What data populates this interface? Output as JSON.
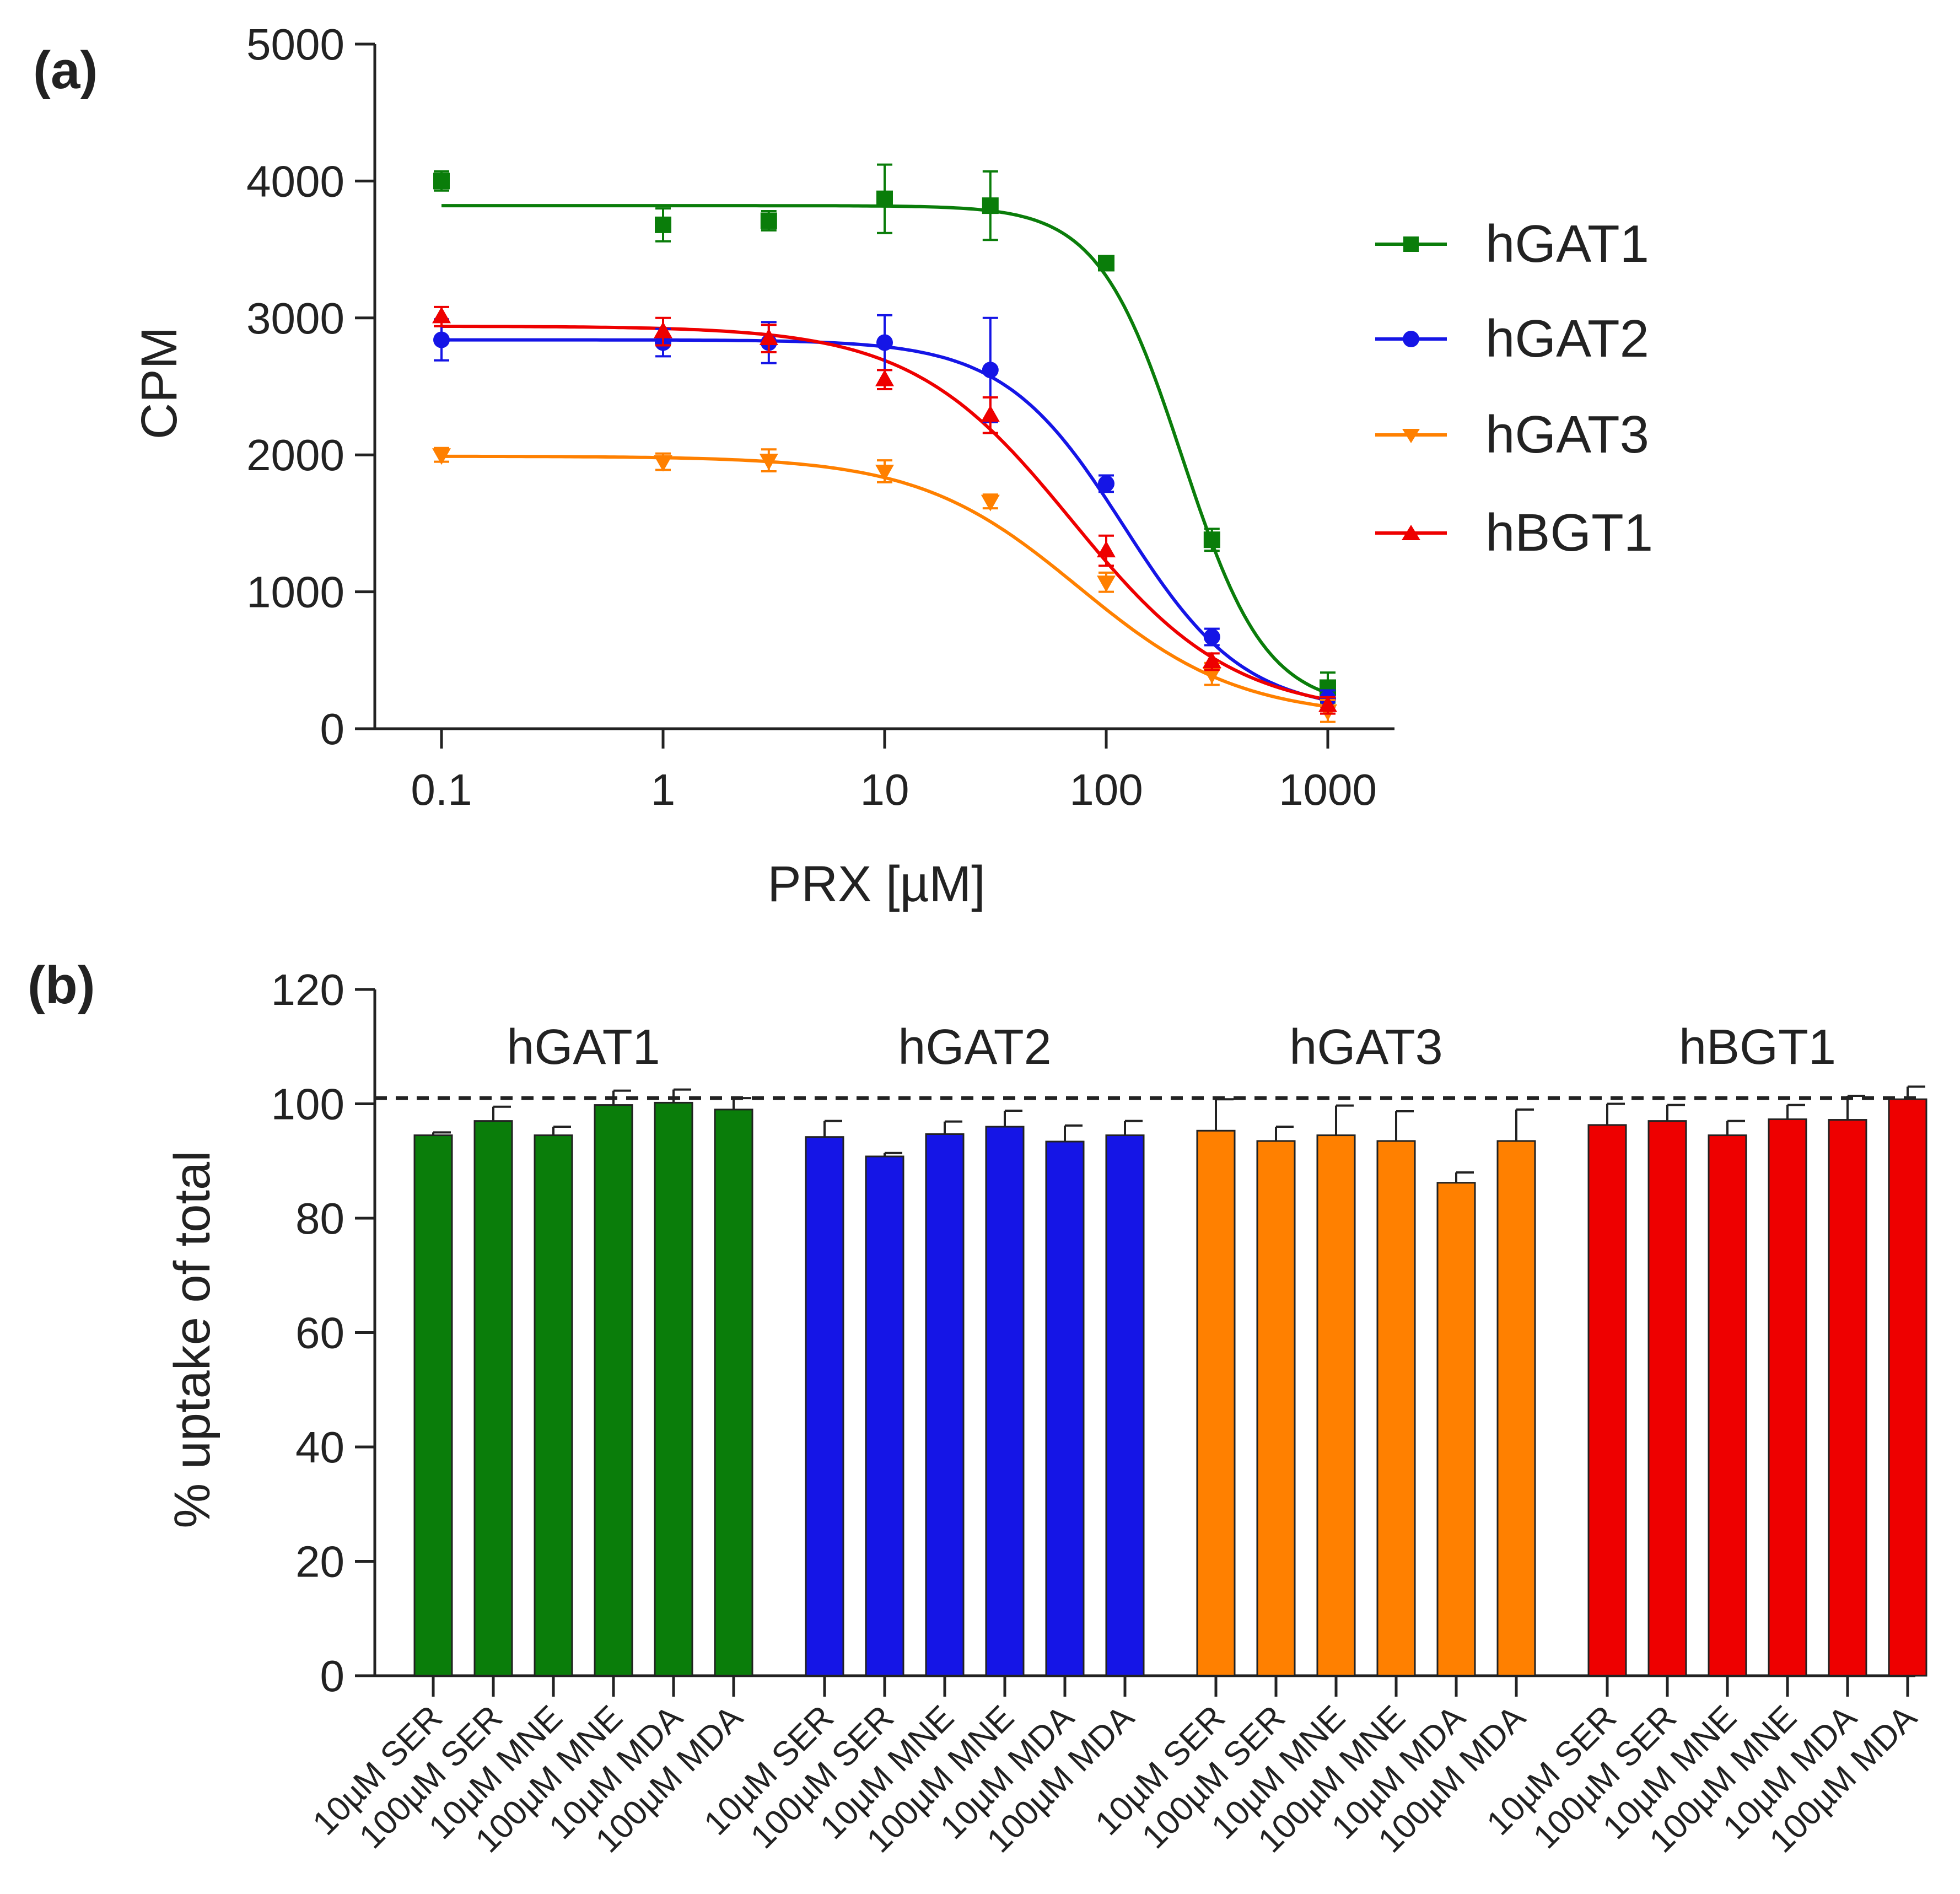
{
  "chart_data": [
    {
      "type": "line",
      "panel_label": "(a)",
      "xlabel": "PRX [µM]",
      "ylabel": "CPM",
      "xscale": "log",
      "xlim": [
        0.05,
        2000
      ],
      "ylim": [
        0,
        5000
      ],
      "x_ticks": [
        0.1,
        1,
        10,
        100,
        1000
      ],
      "x_tick_labels": [
        "0.1",
        "1",
        "10",
        "100",
        "1000"
      ],
      "y_ticks": [
        0,
        1000,
        2000,
        3000,
        4000,
        5000
      ],
      "y_tick_labels": [
        "0",
        "1000",
        "2000",
        "3000",
        "4000",
        "5000"
      ],
      "legend_position": "right",
      "x": [
        0.1,
        1,
        3,
        10,
        30,
        100,
        300,
        1000
      ],
      "series": [
        {
          "name": "hGAT1",
          "color": "#0a7d0a",
          "marker": "square",
          "values": [
            4000,
            3680,
            3710,
            3870,
            3820,
            3400,
            1380,
            300
          ],
          "errors": [
            70,
            120,
            70,
            250,
            250,
            50,
            80,
            110
          ],
          "fit": {
            "top": 3820,
            "bottom": 150,
            "ic50": 220,
            "hill": 2.3
          }
        },
        {
          "name": "hGAT2",
          "color": "#1515e6",
          "marker": "circle",
          "values": [
            2840,
            2820,
            2820,
            2820,
            2620,
            1790,
            670,
            220
          ],
          "errors": [
            150,
            100,
            150,
            200,
            380,
            60,
            60,
            60
          ],
          "fit": {
            "top": 2840,
            "bottom": 120,
            "ic50": 120,
            "hill": 1.6
          }
        },
        {
          "name": "hGAT3",
          "color": "#ff8000",
          "marker": "triangle-down",
          "values": [
            2000,
            1950,
            1960,
            1880,
            1660,
            1070,
            400,
            130
          ],
          "errors": [
            50,
            60,
            80,
            80,
            50,
            70,
            80,
            80
          ],
          "fit": {
            "top": 1990,
            "bottom": 80,
            "ic50": 75,
            "hill": 1.2
          }
        },
        {
          "name": "hBGT1",
          "color": "#ee0000",
          "marker": "triangle-up",
          "values": [
            3010,
            2900,
            2850,
            2550,
            2290,
            1300,
            490,
            170
          ],
          "errors": [
            70,
            100,
            100,
            70,
            130,
            110,
            60,
            60
          ],
          "fit": {
            "top": 2940,
            "bottom": 100,
            "ic50": 70,
            "hill": 1.2
          }
        }
      ]
    },
    {
      "type": "bar",
      "panel_label": "(b)",
      "ylabel": "% uptake of total",
      "ylim": [
        0,
        120
      ],
      "y_ticks": [
        0,
        20,
        40,
        60,
        80,
        100,
        120
      ],
      "y_tick_labels": [
        "0",
        "20",
        "40",
        "60",
        "80",
        "100",
        "120"
      ],
      "reference_line": 101,
      "categories": [
        "10µM SER",
        "100µM SER",
        "10µM MNE",
        "100µM MNE",
        "10µM MDA",
        "100µM MDA"
      ],
      "groups": [
        {
          "name": "hGAT1",
          "color": "#0a7d0a",
          "values": [
            94.5,
            97,
            94.5,
            99.8,
            100.2,
            99
          ],
          "errors": [
            0.5,
            2.5,
            1.5,
            2.5,
            2.3,
            2
          ]
        },
        {
          "name": "hGAT2",
          "color": "#1515e6",
          "values": [
            94.2,
            90.8,
            94.7,
            96,
            93.4,
            94.5
          ],
          "errors": [
            2.8,
            0.6,
            2.2,
            2.8,
            2.8,
            2.5
          ]
        },
        {
          "name": "hGAT3",
          "color": "#ff8000",
          "values": [
            95.3,
            93.5,
            94.5,
            93.5,
            86.2,
            93.5
          ],
          "errors": [
            5.5,
            2.5,
            5.2,
            5.2,
            1.8,
            5.5
          ]
        },
        {
          "name": "hBGT1",
          "color": "#ee0000",
          "values": [
            96.3,
            97,
            94.5,
            97.3,
            97.2,
            100.8
          ],
          "errors": [
            3.7,
            2.8,
            2.5,
            2.5,
            4.2,
            2.2
          ]
        }
      ]
    }
  ]
}
